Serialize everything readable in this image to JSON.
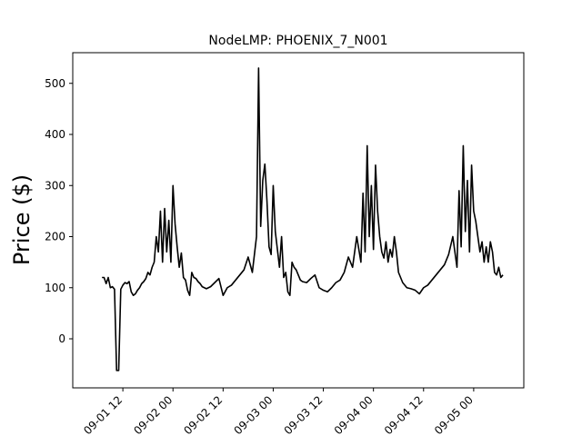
{
  "chart_data": {
    "type": "line",
    "title": "NodeLMP: PHOENIX_7_N001",
    "xlabel": "",
    "ylabel": "Price ($)",
    "x_range": [
      "2023-09-01 00:00",
      "2023-09-05 12:00"
    ],
    "ylim": [
      -96,
      560
    ],
    "yticks": [
      0,
      100,
      200,
      300,
      400,
      500
    ],
    "xticks": [
      {
        "t": "2023-09-01 12:00",
        "label": "09-01 12"
      },
      {
        "t": "2023-09-02 00:00",
        "label": "09-02 00"
      },
      {
        "t": "2023-09-02 12:00",
        "label": "09-02 12"
      },
      {
        "t": "2023-09-03 00:00",
        "label": "09-03 00"
      },
      {
        "t": "2023-09-03 12:00",
        "label": "09-03 12"
      },
      {
        "t": "2023-09-04 00:00",
        "label": "09-04 00"
      },
      {
        "t": "2023-09-04 12:00",
        "label": "09-04 12"
      },
      {
        "t": "2023-09-05 00:00",
        "label": "09-05 00"
      }
    ],
    "grid": false,
    "line_color": "#000000",
    "series": [
      {
        "x": [
          "2023-09-01 07:00",
          "2023-09-01 07:30",
          "2023-09-01 08:00",
          "2023-09-01 08:30",
          "2023-09-01 09:00",
          "2023-09-01 09:30",
          "2023-09-01 10:00",
          "2023-09-01 10:30",
          "2023-09-01 11:00",
          "2023-09-01 11:30",
          "2023-09-01 12:00",
          "2023-09-01 12:30",
          "2023-09-01 13:00",
          "2023-09-01 13:30",
          "2023-09-01 14:00",
          "2023-09-01 14:30",
          "2023-09-01 15:00",
          "2023-09-01 15:30",
          "2023-09-01 16:00",
          "2023-09-01 16:30",
          "2023-09-01 17:00",
          "2023-09-01 17:30",
          "2023-09-01 18:00",
          "2023-09-01 18:30",
          "2023-09-01 19:00",
          "2023-09-01 19:30",
          "2023-09-01 20:00",
          "2023-09-01 20:30",
          "2023-09-01 21:00",
          "2023-09-01 21:30",
          "2023-09-01 22:00",
          "2023-09-01 22:30",
          "2023-09-01 23:00",
          "2023-09-01 23:30",
          "2023-09-02 00:00",
          "2023-09-02 00:30",
          "2023-09-02 01:00",
          "2023-09-02 01:30",
          "2023-09-02 02:00",
          "2023-09-02 02:30",
          "2023-09-02 03:00",
          "2023-09-02 03:30",
          "2023-09-02 04:00",
          "2023-09-02 04:30",
          "2023-09-02 05:00",
          "2023-09-02 05:30",
          "2023-09-02 06:00",
          "2023-09-02 06:30",
          "2023-09-02 07:00",
          "2023-09-02 07:30",
          "2023-09-02 08:00",
          "2023-09-02 09:00",
          "2023-09-02 10:00",
          "2023-09-02 11:00",
          "2023-09-02 12:00",
          "2023-09-02 13:00",
          "2023-09-02 14:00",
          "2023-09-02 15:00",
          "2023-09-02 16:00",
          "2023-09-02 17:00",
          "2023-09-02 18:00",
          "2023-09-02 19:00",
          "2023-09-02 20:00",
          "2023-09-02 20:30",
          "2023-09-02 21:00",
          "2023-09-02 21:30",
          "2023-09-02 22:00",
          "2023-09-02 22:30",
          "2023-09-02 23:00",
          "2023-09-02 23:30",
          "2023-09-03 00:00",
          "2023-09-03 00:30",
          "2023-09-03 01:00",
          "2023-09-03 01:30",
          "2023-09-03 02:00",
          "2023-09-03 02:30",
          "2023-09-03 03:00",
          "2023-09-03 03:30",
          "2023-09-03 04:00",
          "2023-09-03 04:30",
          "2023-09-03 05:00",
          "2023-09-03 05:30",
          "2023-09-03 06:00",
          "2023-09-03 06:30",
          "2023-09-03 07:00",
          "2023-09-03 08:00",
          "2023-09-03 09:00",
          "2023-09-03 10:00",
          "2023-09-03 11:00",
          "2023-09-03 12:00",
          "2023-09-03 13:00",
          "2023-09-03 14:00",
          "2023-09-03 15:00",
          "2023-09-03 16:00",
          "2023-09-03 17:00",
          "2023-09-03 18:00",
          "2023-09-03 19:00",
          "2023-09-03 20:00",
          "2023-09-03 21:00",
          "2023-09-03 21:30",
          "2023-09-03 22:00",
          "2023-09-03 22:30",
          "2023-09-03 23:00",
          "2023-09-03 23:30",
          "2023-09-04 00:00",
          "2023-09-04 00:30",
          "2023-09-04 01:00",
          "2023-09-04 01:30",
          "2023-09-04 02:00",
          "2023-09-04 02:30",
          "2023-09-04 03:00",
          "2023-09-04 03:30",
          "2023-09-04 04:00",
          "2023-09-04 04:30",
          "2023-09-04 05:00",
          "2023-09-04 05:30",
          "2023-09-04 06:00",
          "2023-09-04 07:00",
          "2023-09-04 08:00",
          "2023-09-04 09:00",
          "2023-09-04 10:00",
          "2023-09-04 11:00",
          "2023-09-04 12:00",
          "2023-09-04 13:00",
          "2023-09-04 14:00",
          "2023-09-04 15:00",
          "2023-09-04 16:00",
          "2023-09-04 17:00",
          "2023-09-04 18:00",
          "2023-09-04 19:00",
          "2023-09-04 20:00",
          "2023-09-04 20:30",
          "2023-09-04 21:00",
          "2023-09-04 21:30",
          "2023-09-04 22:00",
          "2023-09-04 22:30",
          "2023-09-04 23:00",
          "2023-09-04 23:30",
          "2023-09-05 00:00",
          "2023-09-05 00:30",
          "2023-09-05 01:00",
          "2023-09-05 01:30",
          "2023-09-05 02:00",
          "2023-09-05 02:30",
          "2023-09-05 03:00",
          "2023-09-05 03:30",
          "2023-09-05 04:00",
          "2023-09-05 04:30",
          "2023-09-05 05:00",
          "2023-09-05 05:30",
          "2023-09-05 06:00",
          "2023-09-05 06:30",
          "2023-09-05 07:00"
        ],
        "y": [
          120,
          120,
          108,
          120,
          100,
          102,
          97,
          -62,
          -62,
          97,
          105,
          110,
          108,
          112,
          92,
          85,
          88,
          95,
          100,
          108,
          112,
          118,
          130,
          125,
          140,
          150,
          200,
          170,
          250,
          150,
          255,
          170,
          232,
          150,
          300,
          225,
          180,
          140,
          168,
          120,
          115,
          95,
          85,
          130,
          120,
          118,
          112,
          108,
          102,
          100,
          98,
          102,
          110,
          118,
          85,
          100,
          105,
          115,
          125,
          135,
          160,
          130,
          200,
          530,
          220,
          310,
          342,
          270,
          180,
          165,
          300,
          210,
          175,
          140,
          200,
          120,
          130,
          92,
          85,
          150,
          140,
          135,
          125,
          115,
          112,
          110,
          118,
          125,
          100,
          95,
          92,
          100,
          110,
          115,
          130,
          160,
          140,
          200,
          150,
          285,
          170,
          378,
          200,
          300,
          175,
          340,
          250,
          200,
          170,
          158,
          190,
          150,
          175,
          160,
          200,
          170,
          130,
          110,
          100,
          98,
          95,
          88,
          100,
          105,
          115,
          125,
          135,
          145,
          165,
          200,
          140,
          290,
          180,
          378,
          210,
          310,
          170,
          340,
          250,
          230,
          200,
          170,
          190,
          150,
          180,
          150,
          190,
          170,
          130,
          125,
          140,
          120,
          125
        ]
      }
    ]
  }
}
